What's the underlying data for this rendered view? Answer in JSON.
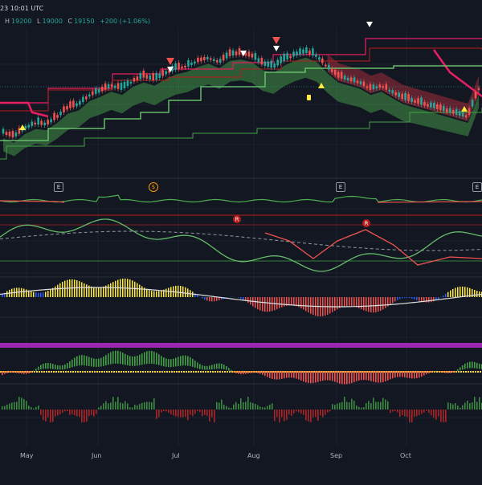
{
  "header": {
    "time": "23 10:01 UTC",
    "ohlc": [
      {
        "key": "H",
        "value": "19200"
      },
      {
        "key": "L",
        "value": "19000"
      },
      {
        "key": "C",
        "value": "19150"
      }
    ],
    "change": "+200 (+1.06%)"
  },
  "events": [
    {
      "label": "E"
    },
    {
      "label": "$"
    },
    {
      "label": "E"
    },
    {
      "label": "E"
    }
  ],
  "markers": {
    "r1": "R",
    "r2": "R"
  },
  "colors": {
    "background": "#131722",
    "up": "#26a69a",
    "down": "#ef5350",
    "cloud_up": "#4caf50",
    "cloud_down": "#f23645",
    "band_red": "#e91e63",
    "band_green": "#43a047",
    "osc_white": "#e0e0e0",
    "yellow": "#ffeb3b",
    "purple": "#9c27b0"
  },
  "chart_data": {
    "type": "line",
    "x_axis": [
      "May",
      "Jun",
      "Jul",
      "Aug",
      "Sep",
      "Oct"
    ],
    "series": [
      {
        "values": [
          18450,
          18380,
          18520,
          18600,
          18580,
          18700,
          18850,
          18900,
          19050,
          19120,
          19200,
          19150,
          19280,
          19350,
          19300,
          19400,
          19480,
          19520,
          19600,
          19650,
          19580,
          19700,
          19720,
          19680,
          19550,
          19500,
          19620,
          19700,
          19750,
          19680,
          19500,
          19350,
          19300,
          19250,
          19150,
          19200,
          19100,
          19000,
          18950,
          18900,
          18850,
          18800,
          18750,
          18700,
          19150
        ]
      }
    ]
  }
}
